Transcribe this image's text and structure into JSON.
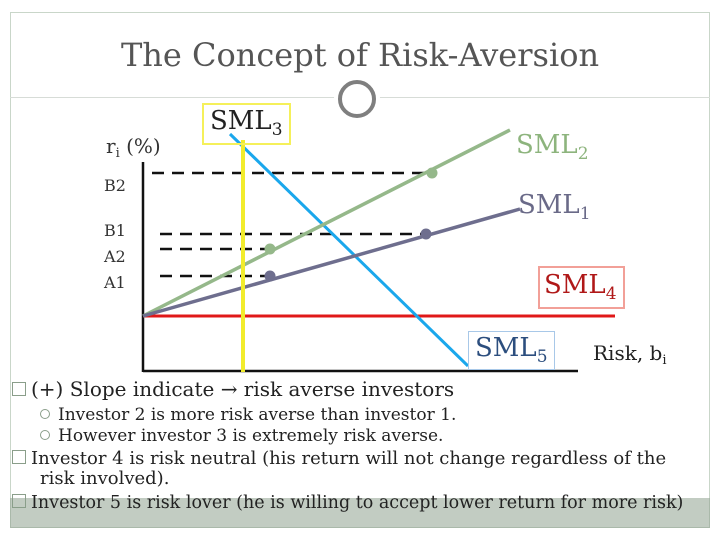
{
  "title": "The Concept of Risk-Aversion",
  "diagram": {
    "y_axis_label_main": "r",
    "y_axis_label_sub": "i",
    "y_axis_label_unit": " (%)",
    "x_axis_label_main": "Risk, b",
    "x_axis_label_sub": "i",
    "y_ticks": [
      "B2",
      "B1",
      "A2",
      "A1"
    ],
    "lines": [
      {
        "main": "SML",
        "sub": "3",
        "color": "#1aa7ec"
      },
      {
        "main": "SML",
        "sub": "2",
        "color": "#95b88a"
      },
      {
        "main": "SML",
        "sub": "1",
        "color": "#6e6e8e"
      },
      {
        "main": "SML",
        "sub": "4",
        "color": "#e01818"
      },
      {
        "main": "SML",
        "sub": "5",
        "color": "#1aa7ec"
      }
    ],
    "marker_line_color": "#f2ec2c"
  },
  "bullets": [
    {
      "text": "(+) Slope indicate → risk averse investors"
    },
    {
      "text": "Investor 2 is more risk averse than investor 1."
    },
    {
      "text": "However investor 3 is extremely risk averse."
    },
    {
      "text": "Investor 4 is risk neutral (his return will not change regardless of the",
      "cont": "risk involved)."
    },
    {
      "text": "Investor 5 is risk lover (he is willing to accept lower return for more risk)"
    }
  ]
}
